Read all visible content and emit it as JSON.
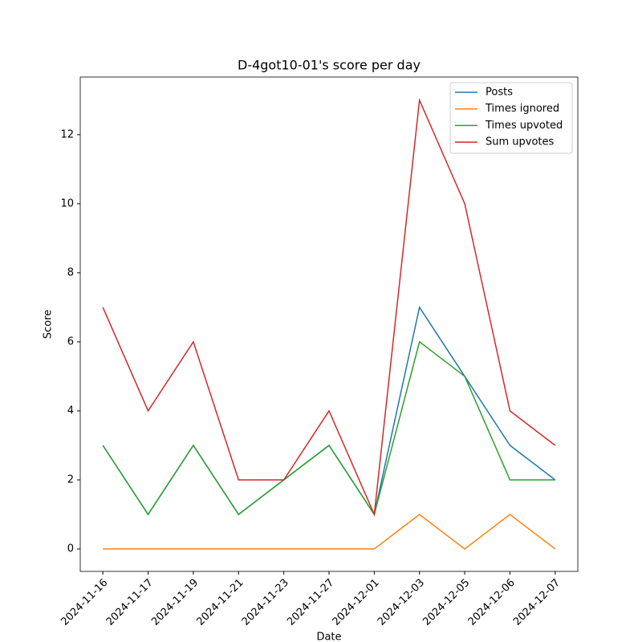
{
  "chart_data": {
    "type": "line",
    "title": "D-4got10-01's score per day",
    "xlabel": "Date",
    "ylabel": "Score",
    "categories": [
      "2024-11-16",
      "2024-11-17",
      "2024-11-19",
      "2024-11-21",
      "2024-11-23",
      "2024-11-27",
      "2024-12-01",
      "2024-12-03",
      "2024-12-05",
      "2024-12-06",
      "2024-12-07"
    ],
    "series": [
      {
        "name": "Posts",
        "color": "#1f77b4",
        "values": [
          3,
          1,
          3,
          1,
          2,
          3,
          1,
          7,
          5,
          3,
          2
        ]
      },
      {
        "name": "Times ignored",
        "color": "#ff7f0e",
        "values": [
          0,
          0,
          0,
          0,
          0,
          0,
          0,
          1,
          0,
          1,
          0
        ]
      },
      {
        "name": "Times upvoted",
        "color": "#2ca02c",
        "values": [
          3,
          1,
          3,
          1,
          2,
          3,
          1,
          6,
          5,
          2,
          2
        ]
      },
      {
        "name": "Sum upvotes",
        "color": "#d62728",
        "values": [
          7,
          4,
          6,
          2,
          2,
          4,
          1,
          13,
          10,
          4,
          3
        ]
      }
    ],
    "ylim": [
      -0.65,
      13.67
    ],
    "yticks": [
      0,
      2,
      4,
      6,
      8,
      10,
      12
    ],
    "grid": false,
    "legend": "upper right"
  }
}
